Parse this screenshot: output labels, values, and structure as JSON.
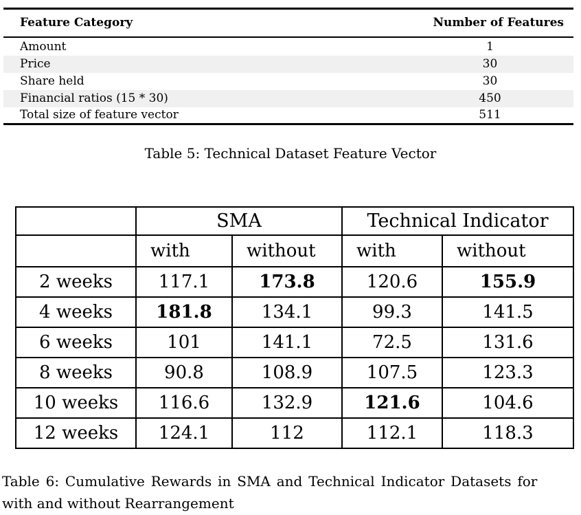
{
  "colors": {
    "background": "#ffffff",
    "text": "#000000",
    "border": "#000000",
    "row_shade": "#f0f0f0"
  },
  "table5": {
    "headers": [
      "Feature Category",
      "Number of Features"
    ],
    "rows": [
      {
        "category": "Amount",
        "count": "1",
        "shaded": false
      },
      {
        "category": "Price",
        "count": "30",
        "shaded": true
      },
      {
        "category": "Share held",
        "count": "30",
        "shaded": false
      },
      {
        "category": "Financial ratios (15 * 30)",
        "count": "450",
        "shaded": true
      },
      {
        "category": "Total size of feature vector",
        "count": "511",
        "shaded": false
      }
    ],
    "caption": "Table 5: Technical Dataset Feature Vector"
  },
  "table6": {
    "group_headers": [
      "SMA",
      "Technical Indicator"
    ],
    "sub_headers": [
      "with",
      "without",
      "with",
      "without"
    ],
    "rows": [
      {
        "label": "2 weeks",
        "values": [
          "117.1",
          "173.8",
          "120.6",
          "155.9"
        ],
        "bold": [
          false,
          true,
          false,
          true
        ]
      },
      {
        "label": "4 weeks",
        "values": [
          "181.8",
          "134.1",
          "99.3",
          "141.5"
        ],
        "bold": [
          true,
          false,
          false,
          false
        ]
      },
      {
        "label": "6 weeks",
        "values": [
          "101",
          "141.1",
          "72.5",
          "131.6"
        ],
        "bold": [
          false,
          false,
          false,
          false
        ]
      },
      {
        "label": "8 weeks",
        "values": [
          "90.8",
          "108.9",
          "107.5",
          "123.3"
        ],
        "bold": [
          false,
          false,
          false,
          false
        ]
      },
      {
        "label": "10 weeks",
        "values": [
          "116.6",
          "132.9",
          "121.6",
          "104.6"
        ],
        "bold": [
          false,
          false,
          true,
          false
        ]
      },
      {
        "label": "12 weeks",
        "values": [
          "124.1",
          "112",
          "112.1",
          "118.3"
        ],
        "bold": [
          false,
          false,
          false,
          false
        ]
      }
    ],
    "caption": "Table 6: Cumulative Rewards in SMA and Technical Indicator Datasets for with and without Rearrangement",
    "caption_lines": [
      "Table 6: Cumulative Rewards in SMA and Technical Indicator Datasets for",
      "with and without Rearrangement"
    ]
  }
}
